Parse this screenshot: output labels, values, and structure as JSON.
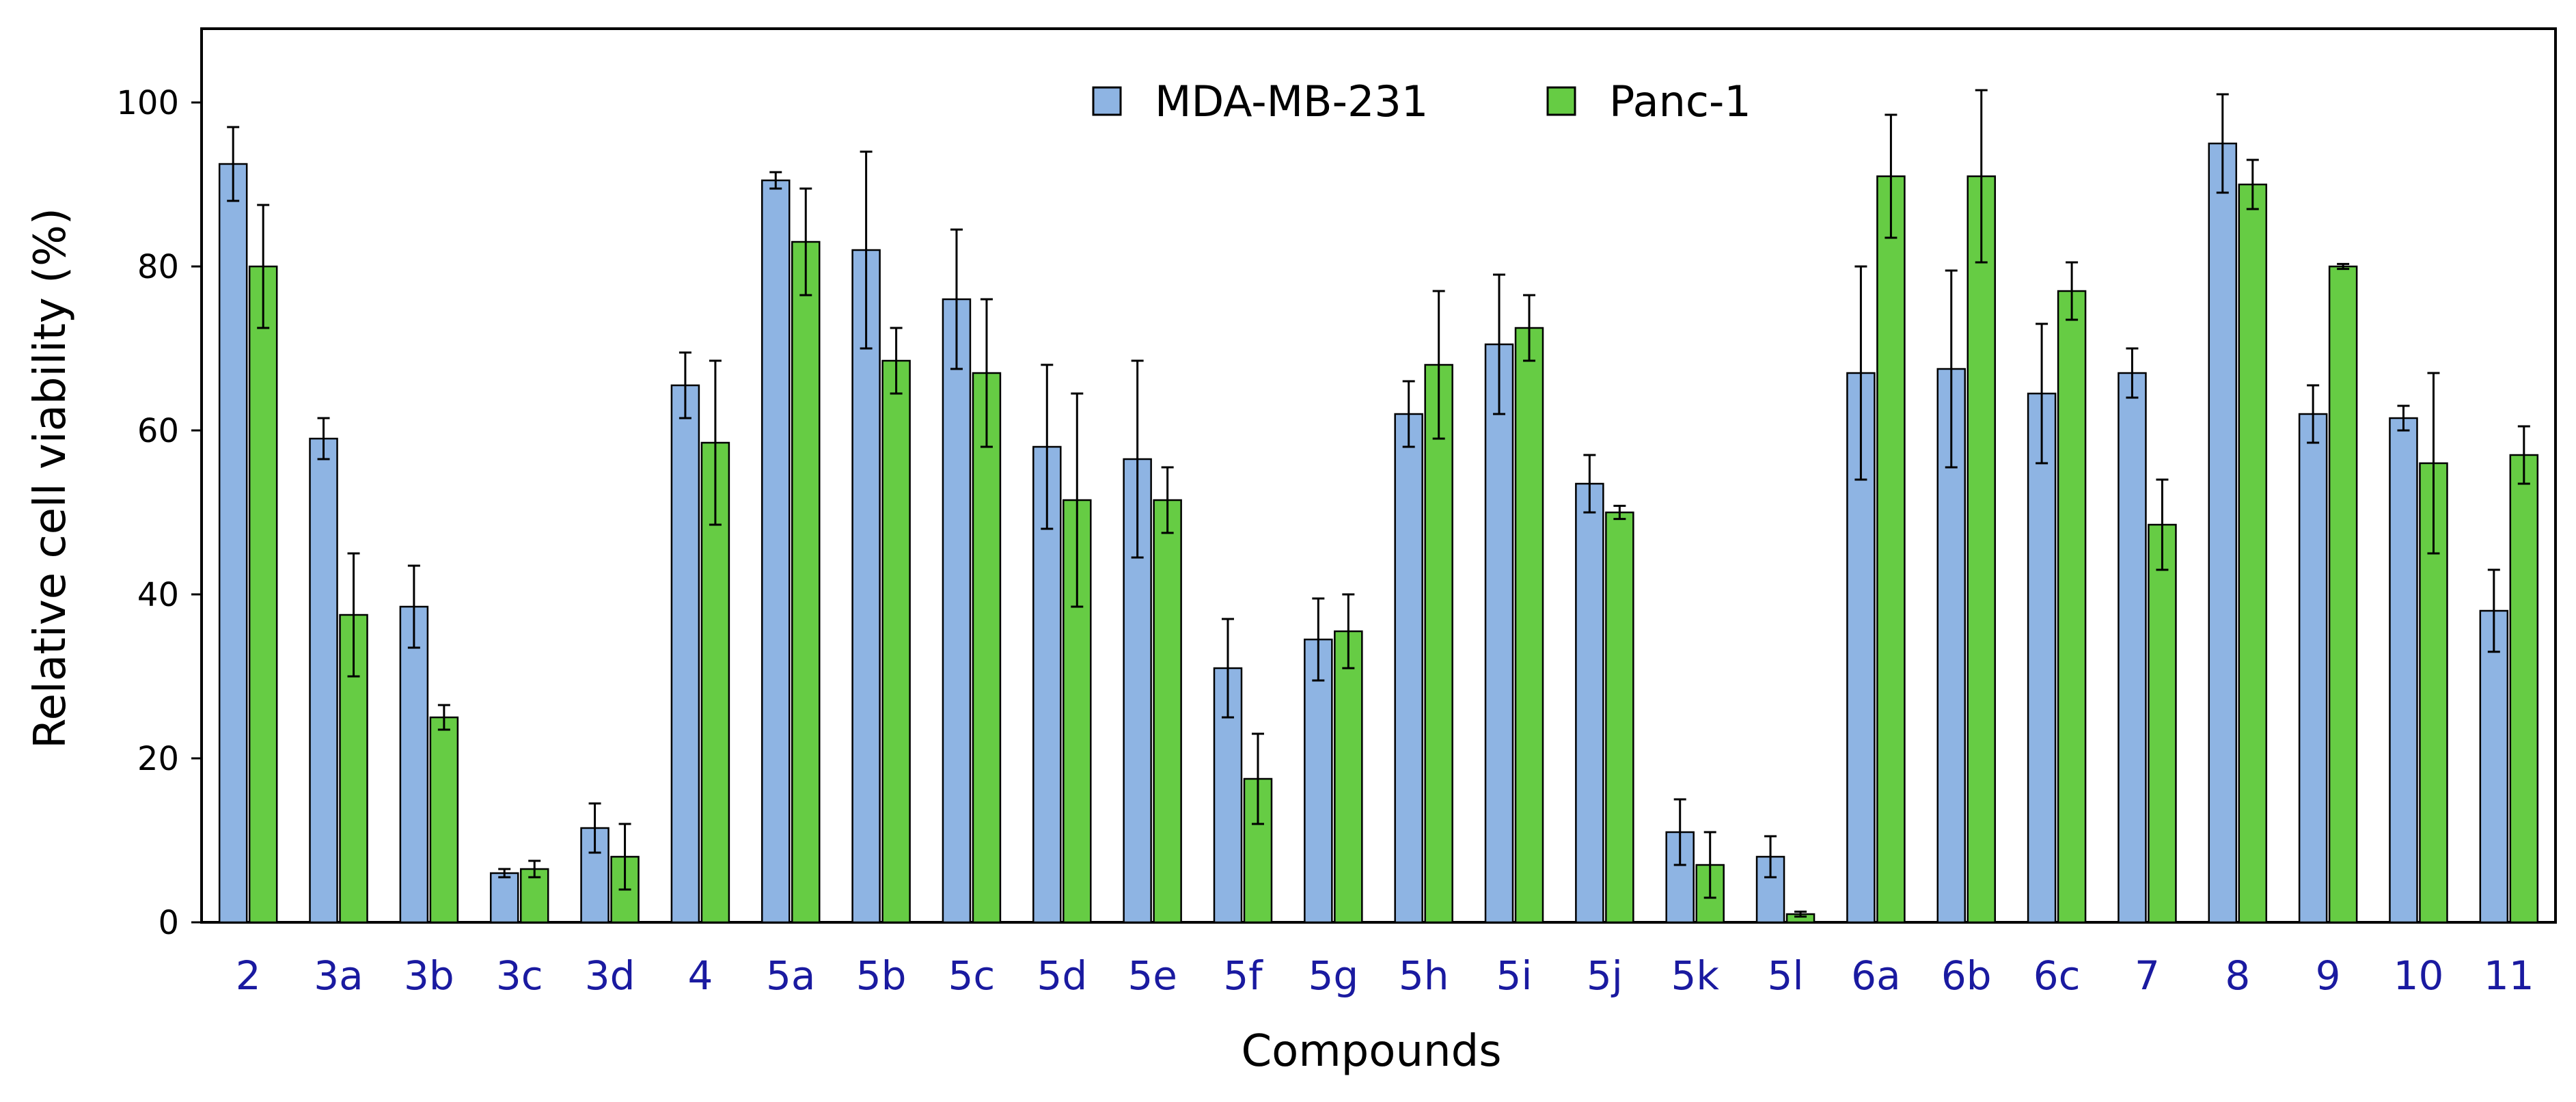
{
  "chart_data": {
    "type": "bar",
    "title": "",
    "xlabel": "Compounds",
    "ylabel": "Relative cell viability (%)",
    "ylim": [
      0,
      110
    ],
    "yticks": [
      "0",
      "20",
      "40",
      "60",
      "80",
      "100"
    ],
    "legend_position": "top-center",
    "categories": [
      "2",
      "3a",
      "3b",
      "3c",
      "3d",
      "4",
      "5a",
      "5b",
      "5c",
      "5d",
      "5e",
      "5f",
      "5g",
      "5h",
      "5i",
      "5j",
      "5k",
      "5l",
      "6a",
      "6b",
      "6c",
      "7",
      "8",
      "9",
      "10",
      "11"
    ],
    "series": [
      {
        "name": "MDA-MB-231",
        "color": "#8eb4e3",
        "values": [
          92.5,
          59,
          38.5,
          6,
          11.5,
          65.5,
          90.5,
          82,
          76,
          58,
          56.5,
          31,
          34.5,
          62,
          70.5,
          53.5,
          11,
          8,
          67,
          67.5,
          64.5,
          67,
          95,
          62,
          61.5,
          38
        ],
        "errors": [
          4.5,
          2.5,
          5,
          0.5,
          3,
          4,
          1,
          12,
          8.5,
          10,
          12,
          6,
          5,
          4,
          8.5,
          3.5,
          4,
          2.5,
          13,
          12,
          8.5,
          3,
          6,
          3.5,
          1.5,
          5
        ]
      },
      {
        "name": "Panc-1",
        "color": "#66cc44",
        "values": [
          80,
          37.5,
          25,
          6.5,
          8,
          58.5,
          83,
          68.5,
          67,
          51.5,
          51.5,
          17.5,
          35.5,
          68,
          72.5,
          50,
          7,
          1,
          91,
          91,
          77,
          48.5,
          90,
          80,
          56,
          57
        ],
        "errors": [
          7.5,
          7.5,
          1.5,
          1,
          4,
          10,
          6.5,
          4,
          9,
          13,
          4,
          5.5,
          4.5,
          9,
          4,
          0.8,
          4,
          0.3,
          7.5,
          10.5,
          3.5,
          5.5,
          3,
          0.3,
          11,
          3.5
        ]
      }
    ]
  }
}
